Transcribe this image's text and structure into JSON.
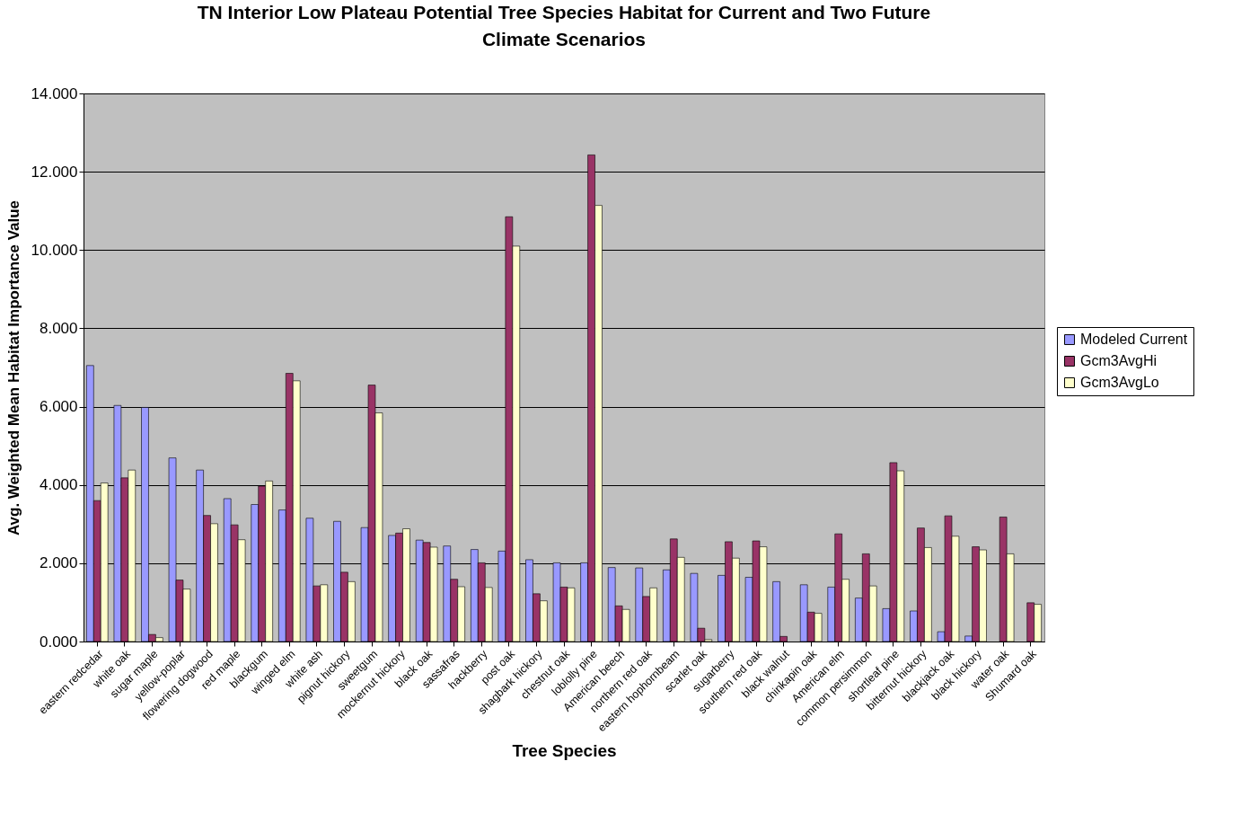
{
  "chart_data": {
    "type": "bar",
    "title": "TN Interior Low Plateau Potential Tree Species Habitat for Current and Two Future Climate Scenarios",
    "xlabel": "Tree Species",
    "ylabel": "Avg. Weighted Mean Habitat Importance Value",
    "categories": [
      "eastern redcedar",
      "white oak",
      "sugar maple",
      "yellow-poplar",
      "flowering dogwood",
      "red maple",
      "blackgum",
      "winged elm",
      "white ash",
      "pignut hickory",
      "sweetgum",
      "mockernut hickory",
      "black oak",
      "sassafras",
      "hackberry",
      "post oak",
      "shagbark hickory",
      "chestnut oak",
      "loblolly pine",
      "American beech",
      "northern red oak",
      "eastern hophornbeam",
      "scarlet oak",
      "sugarberry",
      "southern red oak",
      "black walnut",
      "chinkapin oak",
      "American elm",
      "common persimmon",
      "shortleaf pine",
      "bitternut hickory",
      "blackjack oak",
      "black hickory",
      "water oak",
      "Shumard oak"
    ],
    "series": [
      {
        "name": "Modeled Current",
        "color": "#9999ff",
        "values": [
          7.05,
          6.03,
          5.98,
          4.69,
          4.38,
          3.65,
          3.5,
          3.36,
          3.15,
          3.07,
          2.91,
          2.71,
          2.59,
          2.44,
          2.35,
          2.31,
          2.09,
          2.01,
          2.01,
          1.89,
          1.88,
          1.83,
          1.74,
          1.69,
          1.64,
          1.53,
          1.45,
          1.39,
          1.11,
          0.84,
          0.78,
          0.25,
          0.14,
          0,
          0
        ]
      },
      {
        "name": "Gcm3AvgHi",
        "color": "#993366",
        "values": [
          3.6,
          4.18,
          0.18,
          1.57,
          3.22,
          2.98,
          3.97,
          6.85,
          1.42,
          1.77,
          6.55,
          2.77,
          2.53,
          1.59,
          2.01,
          10.85,
          1.22,
          1.39,
          12.43,
          0.91,
          1.15,
          2.62,
          0.34,
          2.55,
          2.57,
          0.13,
          0.75,
          2.75,
          2.24,
          4.57,
          2.9,
          3.21,
          2.42,
          3.18,
          0.99
        ]
      },
      {
        "name": "Gcm3AvgLo",
        "color": "#ffffcc",
        "values": [
          4.05,
          4.38,
          0.1,
          1.34,
          3.01,
          2.6,
          4.1,
          6.66,
          1.45,
          1.53,
          5.84,
          2.88,
          2.41,
          1.4,
          1.38,
          10.1,
          1.04,
          1.37,
          11.14,
          0.82,
          1.37,
          2.15,
          0.05,
          2.13,
          2.42,
          0,
          0.72,
          1.59,
          1.42,
          4.36,
          2.4,
          2.69,
          2.34,
          2.24,
          0.95
        ]
      }
    ],
    "ylim": [
      0,
      14
    ],
    "yticks": [
      {
        "value": 0,
        "label": "0.000"
      },
      {
        "value": 2,
        "label": "2.000"
      },
      {
        "value": 4,
        "label": "4.000"
      },
      {
        "value": 6,
        "label": "6.000"
      },
      {
        "value": 8,
        "label": "8.000"
      },
      {
        "value": 10,
        "label": "10.000"
      },
      {
        "value": 12,
        "label": "12.000"
      },
      {
        "value": 14,
        "label": "14.000"
      }
    ],
    "grid": "y",
    "legend": "right"
  }
}
